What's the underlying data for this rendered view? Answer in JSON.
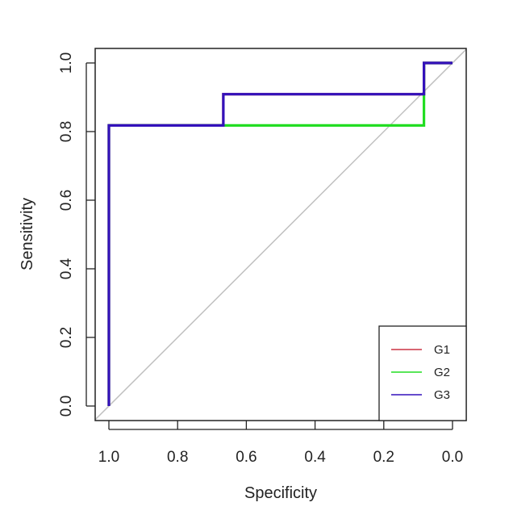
{
  "chart_data": {
    "type": "line",
    "title": "",
    "xlabel": "Specificity",
    "ylabel": "Sensitivity",
    "xlim": [
      1.0,
      0.0
    ],
    "ylim": [
      0.0,
      1.0
    ],
    "x_reversed": true,
    "x_ticks": [
      "1.0",
      "0.8",
      "0.6",
      "0.4",
      "0.2",
      "0.0"
    ],
    "y_ticks": [
      "0.0",
      "0.2",
      "0.4",
      "0.6",
      "0.8",
      "1.0"
    ],
    "grid": false,
    "legend_position": "bottom-right",
    "reference_line": {
      "from": [
        1.0,
        0.0
      ],
      "to": [
        0.0,
        1.0
      ],
      "color": "#c0c0c0"
    },
    "series": [
      {
        "name": "G1",
        "color": "#cc3344",
        "points": [
          [
            1.0,
            0.0
          ],
          [
            1.0,
            0.818
          ],
          [
            0.667,
            0.818
          ],
          [
            0.667,
            0.909
          ],
          [
            0.083,
            0.909
          ],
          [
            0.083,
            1.0
          ],
          [
            0.0,
            1.0
          ]
        ]
      },
      {
        "name": "G2",
        "color": "#22dd22",
        "points": [
          [
            1.0,
            0.0
          ],
          [
            1.0,
            0.818
          ],
          [
            0.083,
            0.818
          ],
          [
            0.083,
            1.0
          ],
          [
            0.0,
            1.0
          ]
        ]
      },
      {
        "name": "G3",
        "color": "#3311bb",
        "points": [
          [
            1.0,
            0.0
          ],
          [
            1.0,
            0.818
          ],
          [
            0.667,
            0.818
          ],
          [
            0.667,
            0.909
          ],
          [
            0.083,
            0.909
          ],
          [
            0.083,
            1.0
          ],
          [
            0.0,
            1.0
          ]
        ]
      }
    ]
  }
}
